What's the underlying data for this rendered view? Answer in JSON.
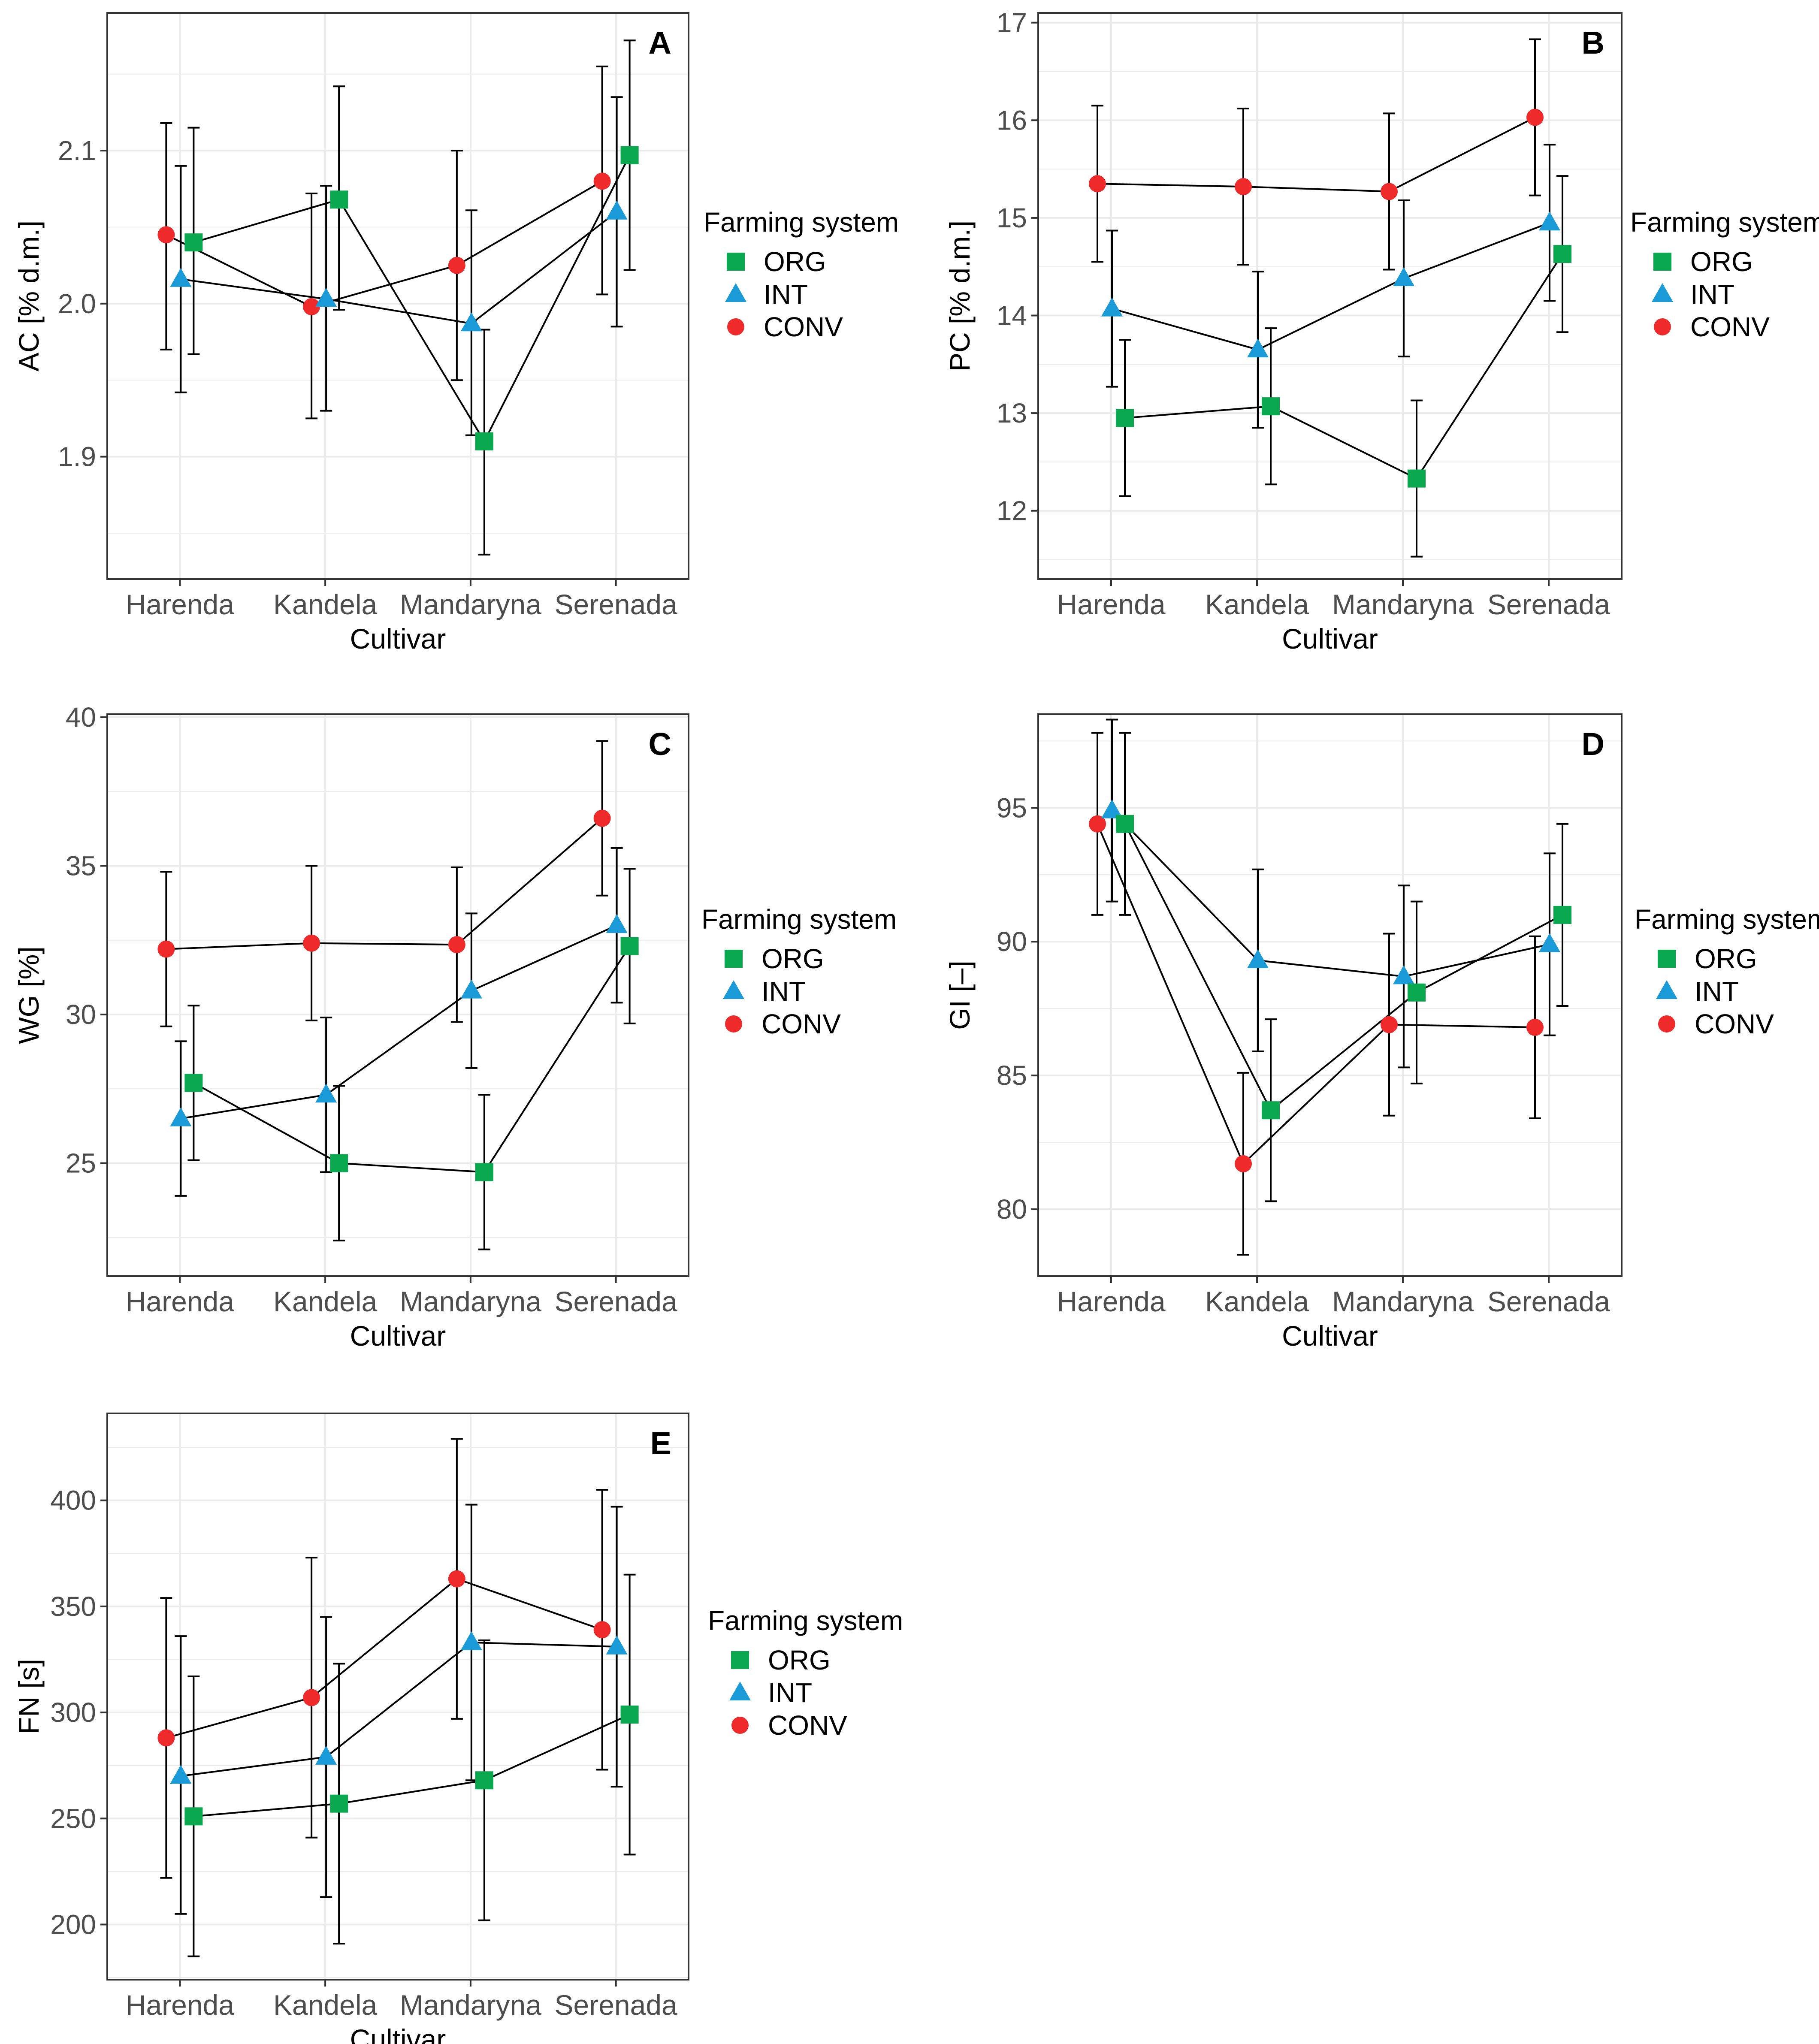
{
  "legend": {
    "title": "Farming system",
    "items": [
      {
        "label": "ORG",
        "shape": "square"
      },
      {
        "label": "INT",
        "shape": "triangle"
      },
      {
        "label": "CONV",
        "shape": "circle"
      }
    ]
  },
  "colors": {
    "ORG": "#0aa84f",
    "INT": "#1a9ad6",
    "CONV": "#ee2a2a",
    "line": "#000000",
    "grid": "#ebebeb",
    "panel_border": "#333333",
    "axis_text": "#4d4d4d"
  },
  "chart_data": [
    {
      "type": "line",
      "panel": "A",
      "title": "A",
      "xlabel": "Cultivar",
      "ylabel": "AC [% d.m.]",
      "categories": [
        "Harenda",
        "Kandela",
        "Mandaryna",
        "Serenada"
      ],
      "ylim": [
        1.82,
        2.19
      ],
      "yticks": [
        1.9,
        2.0,
        2.1
      ],
      "ytick_labels": [
        "1.9",
        "2.0",
        "2.1"
      ],
      "grid": true,
      "legend_position": "right",
      "series": [
        {
          "name": "ORG",
          "values": [
            2.04,
            2.068,
            1.91,
            2.097
          ],
          "lower": [
            1.967,
            1.996,
            1.836,
            2.022
          ],
          "upper": [
            2.115,
            2.142,
            1.983,
            2.172
          ]
        },
        {
          "name": "INT",
          "values": [
            2.016,
            2.003,
            1.987,
            2.06
          ],
          "lower": [
            1.942,
            1.93,
            1.914,
            1.985
          ],
          "upper": [
            2.09,
            2.077,
            2.061,
            2.135
          ]
        },
        {
          "name": "CONV",
          "values": [
            2.045,
            1.998,
            2.025,
            2.08
          ],
          "lower": [
            1.97,
            1.925,
            1.95,
            2.006
          ],
          "upper": [
            2.118,
            2.072,
            2.1,
            2.155
          ]
        }
      ]
    },
    {
      "type": "line",
      "panel": "B",
      "title": "B",
      "xlabel": "Cultivar",
      "ylabel": "PC [% d.m.]",
      "categories": [
        "Harenda",
        "Kandela",
        "Mandaryna",
        "Serenada"
      ],
      "ylim": [
        11.3,
        17.1
      ],
      "yticks": [
        12,
        13,
        14,
        15,
        16,
        17
      ],
      "ytick_labels": [
        "12",
        "13",
        "14",
        "15",
        "16",
        "17"
      ],
      "grid": true,
      "legend_position": "right",
      "series": [
        {
          "name": "ORG",
          "values": [
            12.95,
            13.07,
            12.33,
            14.63
          ],
          "lower": [
            12.15,
            12.27,
            11.53,
            13.83
          ],
          "upper": [
            13.75,
            13.87,
            13.13,
            15.43
          ]
        },
        {
          "name": "INT",
          "values": [
            14.07,
            13.65,
            14.38,
            14.95
          ],
          "lower": [
            13.27,
            12.85,
            13.58,
            14.15
          ],
          "upper": [
            14.87,
            14.45,
            15.18,
            15.75
          ]
        },
        {
          "name": "CONV",
          "values": [
            15.35,
            15.32,
            15.27,
            16.03
          ],
          "lower": [
            14.55,
            14.52,
            14.47,
            15.23
          ],
          "upper": [
            16.15,
            16.12,
            16.07,
            16.83
          ]
        }
      ]
    },
    {
      "type": "line",
      "panel": "C",
      "title": "C",
      "xlabel": "Cultivar",
      "ylabel": "WG [%]",
      "categories": [
        "Harenda",
        "Kandela",
        "Mandaryna",
        "Serenada"
      ],
      "ylim": [
        21.2,
        40.1
      ],
      "yticks": [
        25,
        30,
        35,
        40
      ],
      "ytick_labels": [
        "25",
        "30",
        "35",
        "40"
      ],
      "grid": true,
      "legend_position": "right",
      "series": [
        {
          "name": "ORG",
          "values": [
            27.7,
            25.0,
            24.7,
            32.3
          ],
          "lower": [
            25.1,
            22.4,
            22.1,
            29.7
          ],
          "upper": [
            30.3,
            27.6,
            27.3,
            34.9
          ]
        },
        {
          "name": "INT",
          "values": [
            26.5,
            27.3,
            30.8,
            33.0
          ],
          "lower": [
            23.9,
            24.7,
            28.2,
            30.4
          ],
          "upper": [
            29.1,
            29.9,
            33.4,
            35.6
          ]
        },
        {
          "name": "CONV",
          "values": [
            32.2,
            32.4,
            32.35,
            36.6
          ],
          "lower": [
            29.6,
            29.8,
            29.75,
            34.0
          ],
          "upper": [
            34.8,
            35.0,
            34.95,
            39.2
          ]
        }
      ]
    },
    {
      "type": "line",
      "panel": "D",
      "title": "D",
      "xlabel": "Cultivar",
      "ylabel": "GI [–]",
      "categories": [
        "Harenda",
        "Kandela",
        "Mandaryna",
        "Serenada"
      ],
      "ylim": [
        77.5,
        98.5
      ],
      "yticks": [
        80,
        85,
        90,
        95
      ],
      "ytick_labels": [
        "80",
        "85",
        "90",
        "95"
      ],
      "grid": true,
      "legend_position": "right",
      "series": [
        {
          "name": "ORG",
          "values": [
            94.4,
            83.7,
            88.1,
            91.0
          ],
          "lower": [
            91.0,
            80.3,
            84.7,
            87.6
          ],
          "upper": [
            97.8,
            87.1,
            91.5,
            94.4
          ]
        },
        {
          "name": "INT",
          "values": [
            94.9,
            89.3,
            88.7,
            89.9
          ],
          "lower": [
            91.5,
            85.9,
            85.3,
            86.5
          ],
          "upper": [
            98.3,
            92.7,
            92.1,
            93.3
          ]
        },
        {
          "name": "CONV",
          "values": [
            94.4,
            81.7,
            86.9,
            86.8
          ],
          "lower": [
            91.0,
            78.3,
            83.5,
            83.4
          ],
          "upper": [
            97.8,
            85.1,
            90.3,
            90.2
          ]
        }
      ]
    },
    {
      "type": "line",
      "panel": "E",
      "title": "E",
      "xlabel": "Cultivar",
      "ylabel": "FN [s]",
      "categories": [
        "Harenda",
        "Kandela",
        "Mandaryna",
        "Serenada"
      ],
      "ylim": [
        174,
        441
      ],
      "yticks": [
        200,
        250,
        300,
        350,
        400
      ],
      "ytick_labels": [
        "200",
        "250",
        "300",
        "350",
        "400"
      ],
      "grid": true,
      "legend_position": "right",
      "series": [
        {
          "name": "ORG",
          "values": [
            251,
            257,
            268,
            299
          ],
          "lower": [
            185,
            191,
            202,
            233
          ],
          "upper": [
            317,
            323,
            334,
            365
          ]
        },
        {
          "name": "INT",
          "values": [
            270,
            279,
            333,
            331
          ],
          "lower": [
            205,
            213,
            268,
            265
          ],
          "upper": [
            336,
            345,
            398,
            397
          ]
        },
        {
          "name": "CONV",
          "values": [
            288,
            307,
            363,
            339
          ],
          "lower": [
            222,
            241,
            297,
            273
          ],
          "upper": [
            354,
            373,
            429,
            405
          ]
        }
      ]
    }
  ]
}
